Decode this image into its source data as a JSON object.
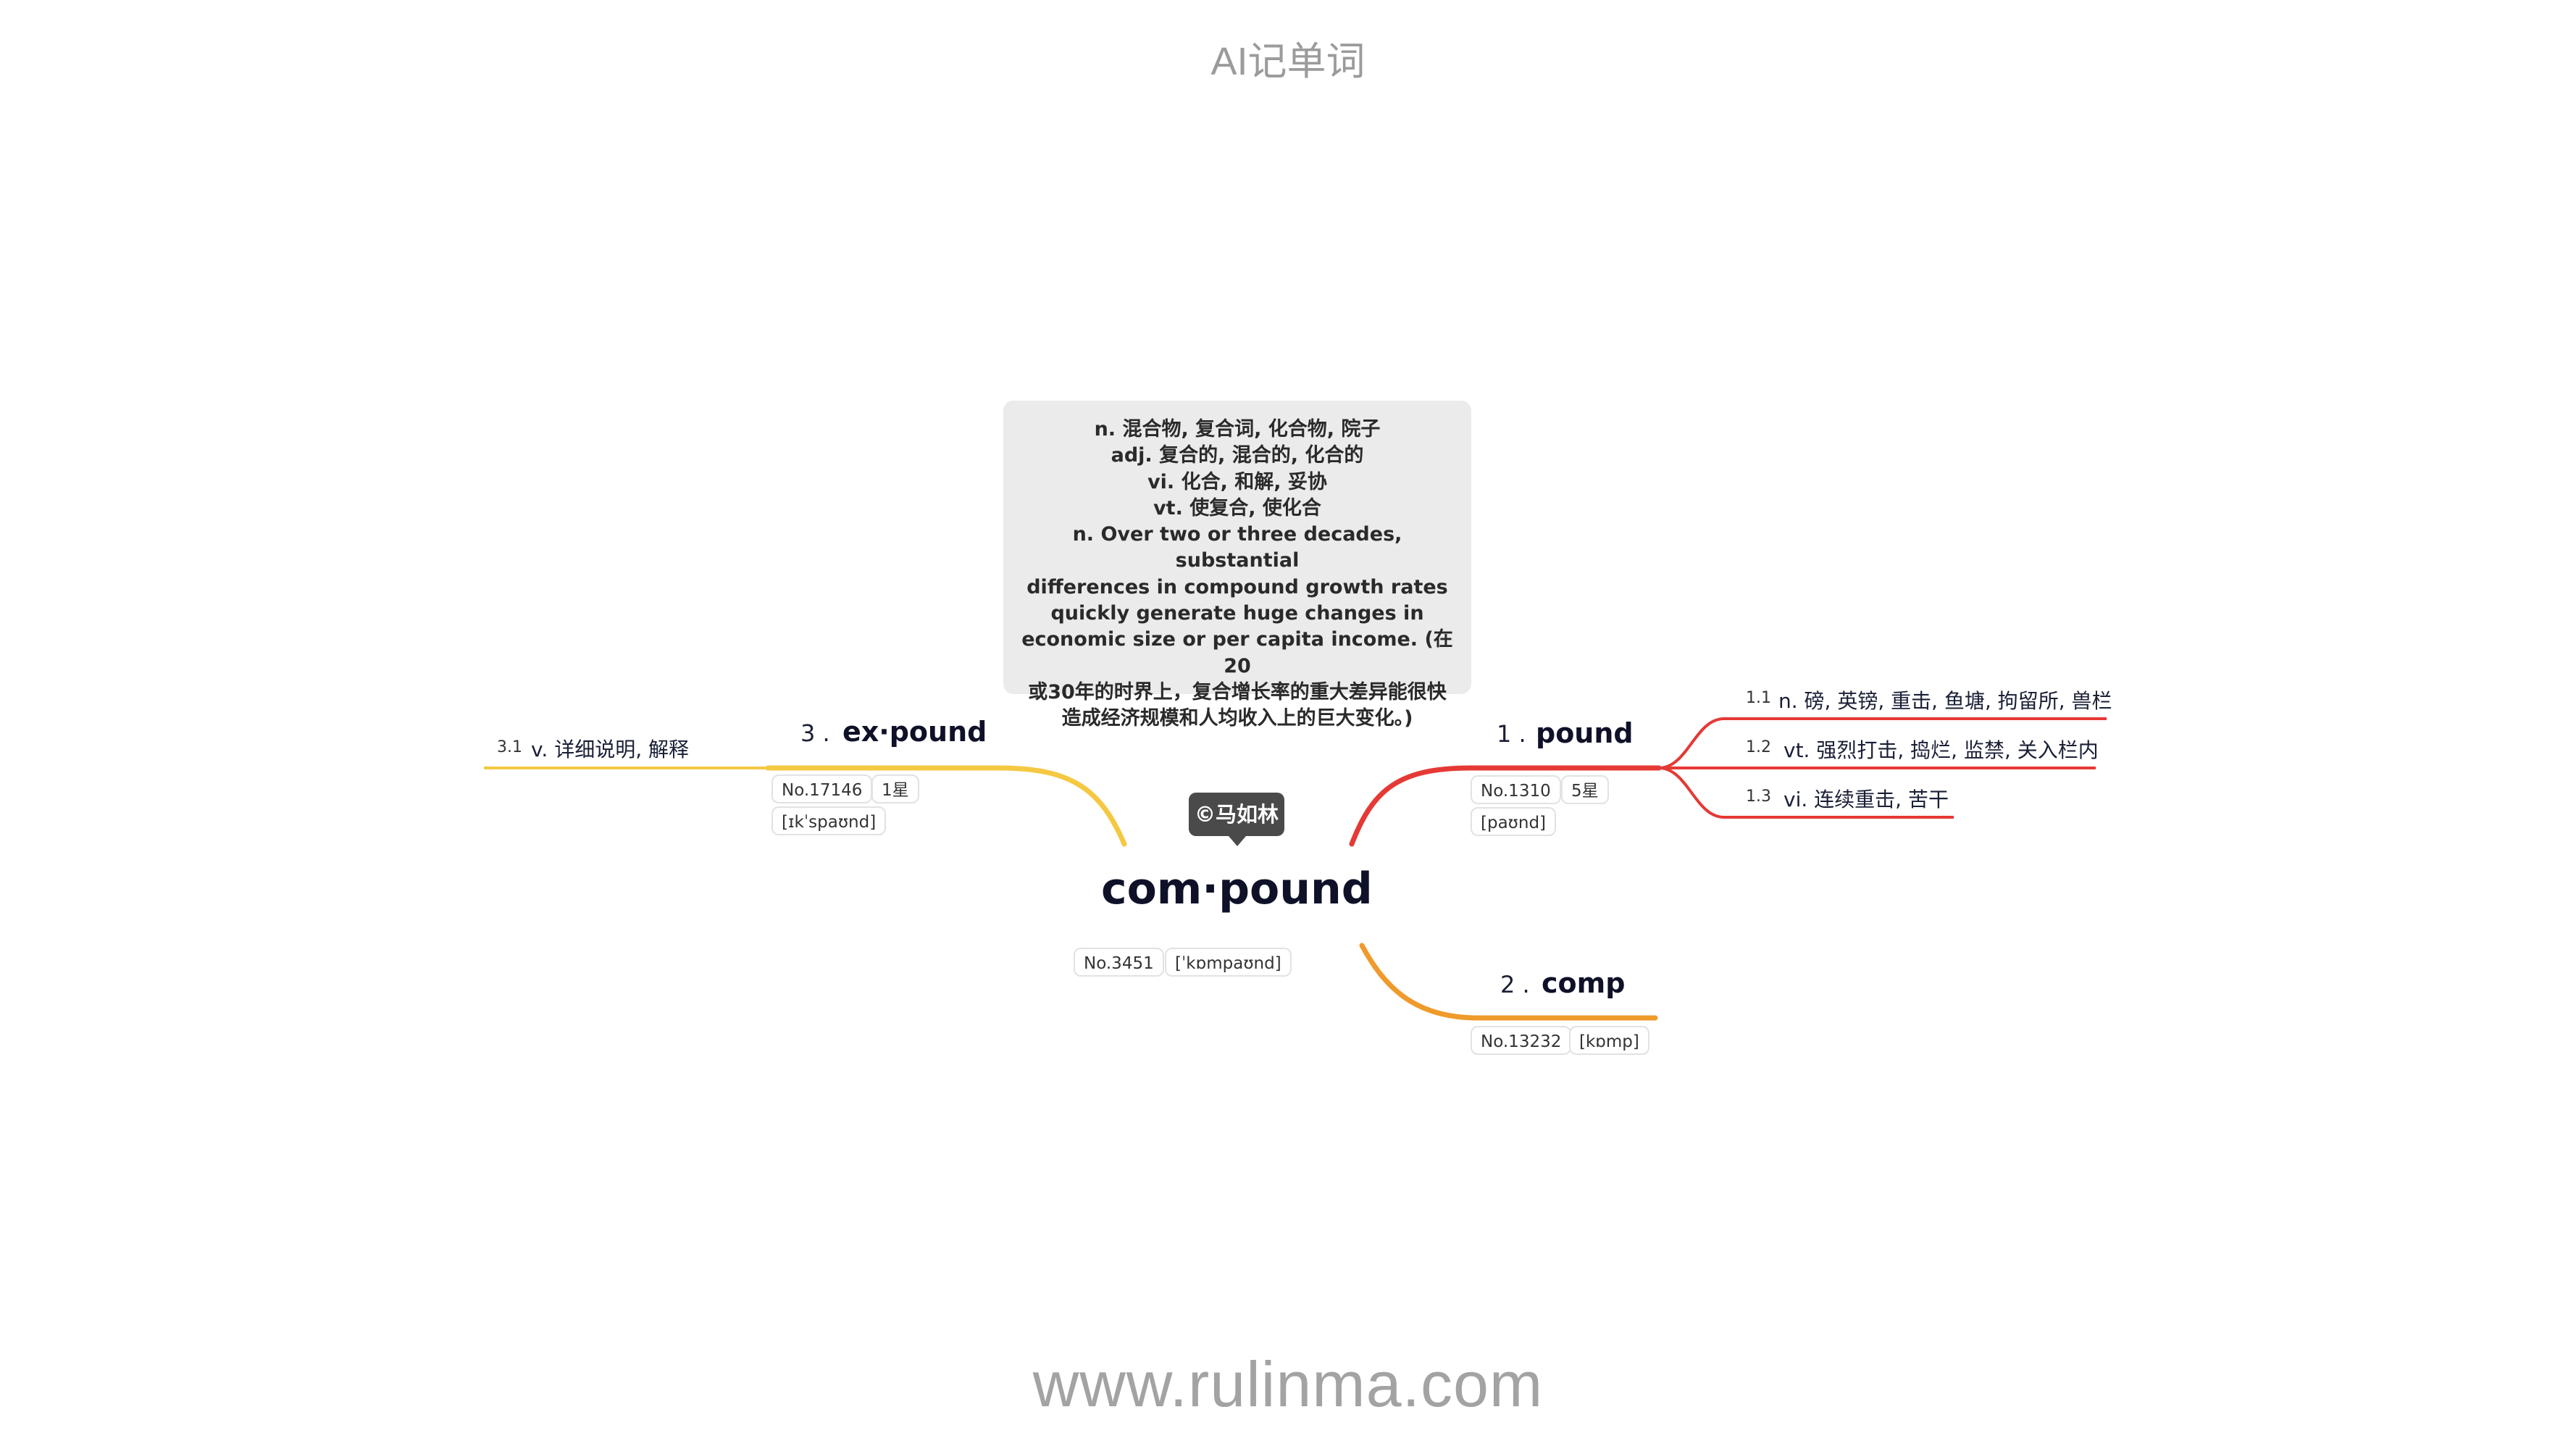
{
  "header": {
    "title": "AI记单词"
  },
  "footer": {
    "url": "www.rulinma.com"
  },
  "definition_card": {
    "lines": [
      "n. 混合物, 复合词, 化合物, 院子",
      "adj. 复合的, 混合的, 化合的",
      "vi. 化合, 和解, 妥协",
      "vt. 使复合, 使化合",
      "n. Over two or three decades, substantial",
      "differences in compound growth rates",
      "quickly generate huge changes in",
      "economic size or per capita income. (在20",
      "或30年的时界上，复合增长率的重大差异能很快",
      "造成经济规模和人均收入上的巨大变化。)"
    ]
  },
  "root": {
    "copyright": "©马如林",
    "word": "com·pound",
    "number": "No.3451",
    "phonetic": "[ˈkɒmpaʊnd]"
  },
  "branches": [
    {
      "index": "1 .",
      "word": "pound",
      "color": "#e53935",
      "number": "No.1310",
      "stars": "5星",
      "phonetic": "[paʊnd]",
      "senses": [
        {
          "index": "1.1",
          "text": "n. 磅, 英镑, 重击, 鱼塘, 拘留所, 兽栏"
        },
        {
          "index": "1.2",
          "text": "vt. 强烈打击, 捣烂, 监禁, 关入栏内"
        },
        {
          "index": "1.3",
          "text": "vi. 连续重击, 苦干"
        }
      ]
    },
    {
      "index": "2 .",
      "word": "comp",
      "color": "#ef9a2b",
      "number": "No.13232",
      "phonetic": "[kɒmp]"
    },
    {
      "index": "3 .",
      "word": "ex·pound",
      "color": "#f5c842",
      "number": "No.17146",
      "stars": "1星",
      "phonetic": "[ɪkˈspaʊnd]",
      "senses": [
        {
          "index": "3.1",
          "text": "v. 详细说明, 解释"
        }
      ]
    }
  ]
}
